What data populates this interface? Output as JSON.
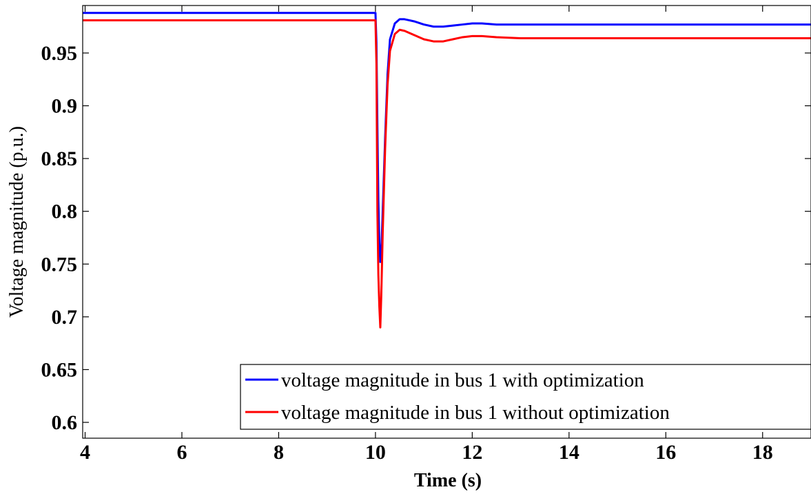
{
  "chart_data": {
    "type": "line",
    "title": "",
    "xlabel": "Time (s)",
    "ylabel": "Voltage magnitude (p.u.)",
    "xlim": [
      3.95,
      19
    ],
    "ylim": [
      0.585,
      0.995
    ],
    "xticks": [
      4,
      6,
      8,
      10,
      12,
      14,
      16,
      18
    ],
    "xtick_labels": [
      "4",
      "6",
      "8",
      "10",
      "12",
      "14",
      "16",
      "18"
    ],
    "yticks": [
      0.6,
      0.65,
      0.7,
      0.75,
      0.8,
      0.85,
      0.9,
      0.95
    ],
    "ytick_labels": [
      "0.6",
      "0.65",
      "0.7",
      "0.75",
      "0.8",
      "0.85",
      "0.9",
      "0.95"
    ],
    "grid": false,
    "legend_position": "bottom-right",
    "series": [
      {
        "name": "voltage magnitude in bus 1 with optimization",
        "color": "#0000ff",
        "x": [
          3.95,
          10.0,
          10.02,
          10.04,
          10.06,
          10.08,
          10.1,
          10.12,
          10.15,
          10.2,
          10.25,
          10.3,
          10.4,
          10.5,
          10.6,
          10.8,
          11.0,
          11.2,
          11.4,
          11.6,
          11.8,
          12.0,
          12.2,
          12.5,
          13.0,
          14.0,
          16.0,
          19.0
        ],
        "y": [
          0.988,
          0.988,
          0.96,
          0.88,
          0.81,
          0.77,
          0.752,
          0.76,
          0.8,
          0.87,
          0.93,
          0.963,
          0.978,
          0.982,
          0.982,
          0.98,
          0.977,
          0.975,
          0.975,
          0.976,
          0.977,
          0.978,
          0.978,
          0.977,
          0.977,
          0.977,
          0.977,
          0.977
        ]
      },
      {
        "name": "voltage magnitude in bus 1 without optimization",
        "color": "#ff0000",
        "x": [
          3.95,
          10.0,
          10.02,
          10.04,
          10.06,
          10.08,
          10.1,
          10.12,
          10.15,
          10.2,
          10.25,
          10.3,
          10.4,
          10.5,
          10.6,
          10.8,
          11.0,
          11.2,
          11.4,
          11.6,
          11.8,
          12.0,
          12.2,
          12.5,
          13.0,
          14.0,
          16.0,
          19.0
        ],
        "y": [
          0.981,
          0.981,
          0.94,
          0.8,
          0.74,
          0.71,
          0.69,
          0.72,
          0.78,
          0.86,
          0.92,
          0.952,
          0.968,
          0.972,
          0.971,
          0.967,
          0.963,
          0.961,
          0.961,
          0.963,
          0.965,
          0.966,
          0.966,
          0.965,
          0.964,
          0.964,
          0.964,
          0.964
        ]
      }
    ]
  }
}
